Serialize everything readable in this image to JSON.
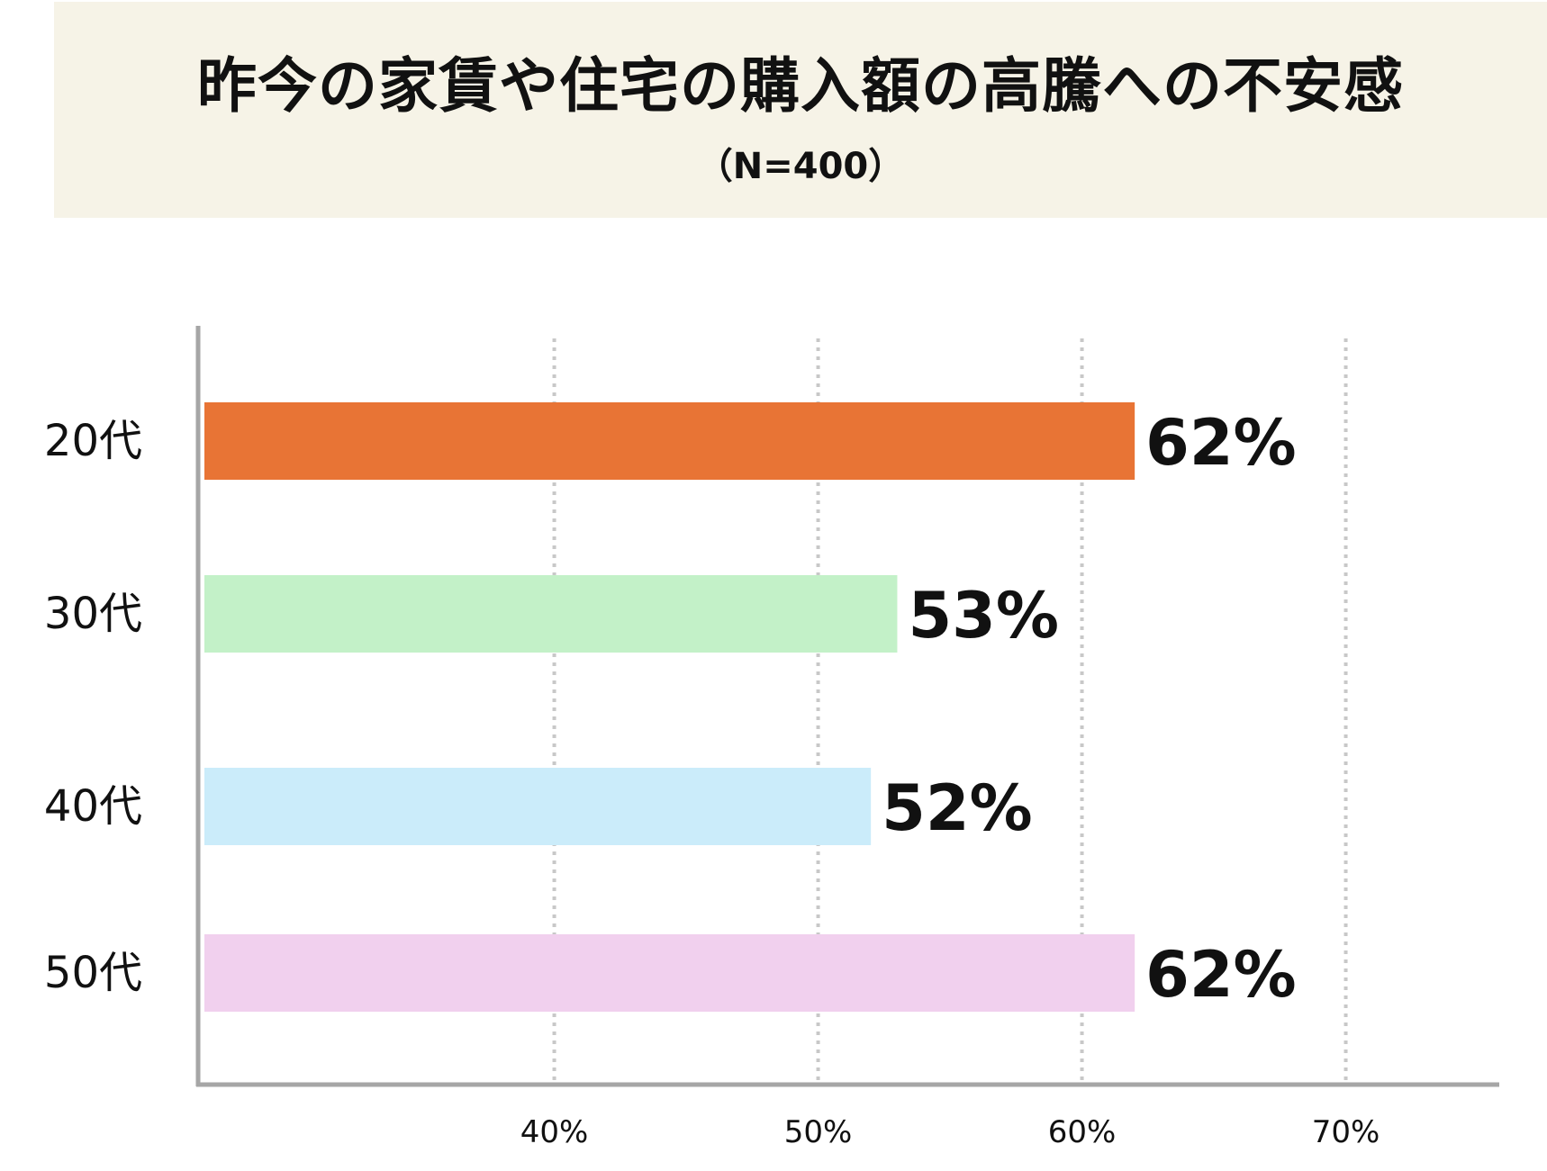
{
  "chart_data": {
    "type": "bar",
    "orientation": "horizontal",
    "title": "昨今の家賃や住宅の購入額の高騰への不安感",
    "subtitle": "（N=400）",
    "categories": [
      "20代",
      "30代",
      "40代",
      "50代"
    ],
    "values": [
      62,
      53,
      52,
      62
    ],
    "value_labels": [
      "62%",
      "53%",
      "52%",
      "62%"
    ],
    "bar_colors": [
      "#e87435",
      "#c3f1c8",
      "#cbecfa",
      "#f1d0ee"
    ],
    "xlim": [
      26.5,
      75
    ],
    "xticks": [
      40,
      50,
      60,
      70
    ],
    "xtick_labels": [
      "40%",
      "50%",
      "60%",
      "70%"
    ],
    "grid": "vertical dotted",
    "legend": "none"
  }
}
